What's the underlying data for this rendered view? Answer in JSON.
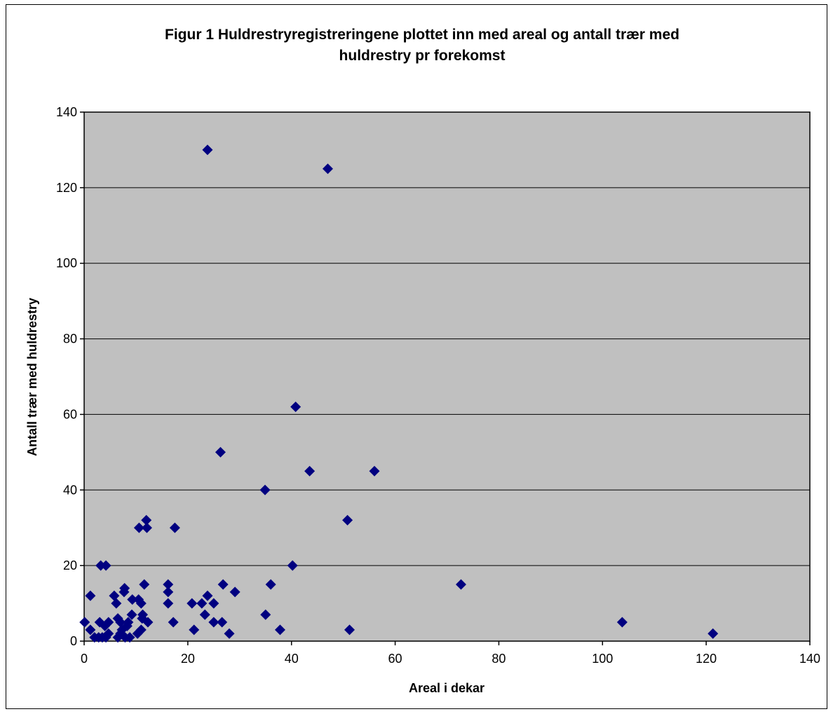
{
  "chart_data": {
    "type": "scatter",
    "title_line1": "Figur 1 Huldrestryregistreringene plottet inn med areal og antall trær med",
    "title_line2": "huldrestry pr forekomst",
    "xlabel": "Areal i dekar",
    "ylabel": "Antall trær med huldrestry",
    "xlim": [
      0,
      140
    ],
    "ylim": [
      0,
      140
    ],
    "xticks": [
      "0",
      "20",
      "40",
      "60",
      "80",
      "100",
      "120",
      "140"
    ],
    "yticks": [
      "0",
      "20",
      "40",
      "60",
      "80",
      "100",
      "120",
      "140"
    ],
    "grid": "horizontal",
    "plot_background": "#c0c0c0",
    "marker_color": "#000080",
    "marker": "diamond",
    "points": [
      [
        0.1,
        5
      ],
      [
        1.2,
        3
      ],
      [
        1.2,
        12
      ],
      [
        2.0,
        1
      ],
      [
        2.8,
        1
      ],
      [
        3.0,
        5
      ],
      [
        3.5,
        1
      ],
      [
        3.2,
        20
      ],
      [
        4.0,
        4
      ],
      [
        4.2,
        1
      ],
      [
        4.2,
        20
      ],
      [
        4.7,
        5
      ],
      [
        4.7,
        2
      ],
      [
        5.8,
        12
      ],
      [
        6.2,
        10
      ],
      [
        6.5,
        6
      ],
      [
        6.5,
        1
      ],
      [
        7.0,
        5
      ],
      [
        7.0,
        2
      ],
      [
        7.3,
        3
      ],
      [
        7.7,
        13
      ],
      [
        7.8,
        14
      ],
      [
        7.9,
        1
      ],
      [
        8.3,
        4
      ],
      [
        8.5,
        5
      ],
      [
        8.8,
        1
      ],
      [
        9.2,
        7
      ],
      [
        9.3,
        11
      ],
      [
        10.3,
        2
      ],
      [
        10.5,
        11
      ],
      [
        10.6,
        30
      ],
      [
        11.0,
        10
      ],
      [
        11.0,
        3
      ],
      [
        11.2,
        6
      ],
      [
        11.3,
        7
      ],
      [
        11.6,
        15
      ],
      [
        12.0,
        32
      ],
      [
        12.1,
        30
      ],
      [
        12.3,
        5
      ],
      [
        16.2,
        15
      ],
      [
        16.2,
        13
      ],
      [
        16.2,
        10
      ],
      [
        17.2,
        5
      ],
      [
        17.5,
        30
      ],
      [
        20.8,
        10
      ],
      [
        21.2,
        3
      ],
      [
        22.7,
        10
      ],
      [
        23.3,
        7
      ],
      [
        23.8,
        12
      ],
      [
        23.8,
        130
      ],
      [
        25.0,
        10
      ],
      [
        25.0,
        5
      ],
      [
        26.3,
        50
      ],
      [
        26.6,
        5
      ],
      [
        26.8,
        15
      ],
      [
        28.0,
        2
      ],
      [
        29.1,
        13
      ],
      [
        34.9,
        40
      ],
      [
        35.0,
        7
      ],
      [
        36.0,
        15
      ],
      [
        37.8,
        3
      ],
      [
        40.2,
        20
      ],
      [
        40.8,
        62
      ],
      [
        43.5,
        45
      ],
      [
        47.0,
        125
      ],
      [
        50.8,
        32
      ],
      [
        51.2,
        3
      ],
      [
        56.0,
        45
      ],
      [
        72.7,
        15
      ],
      [
        103.8,
        5
      ],
      [
        121.3,
        2
      ]
    ]
  }
}
